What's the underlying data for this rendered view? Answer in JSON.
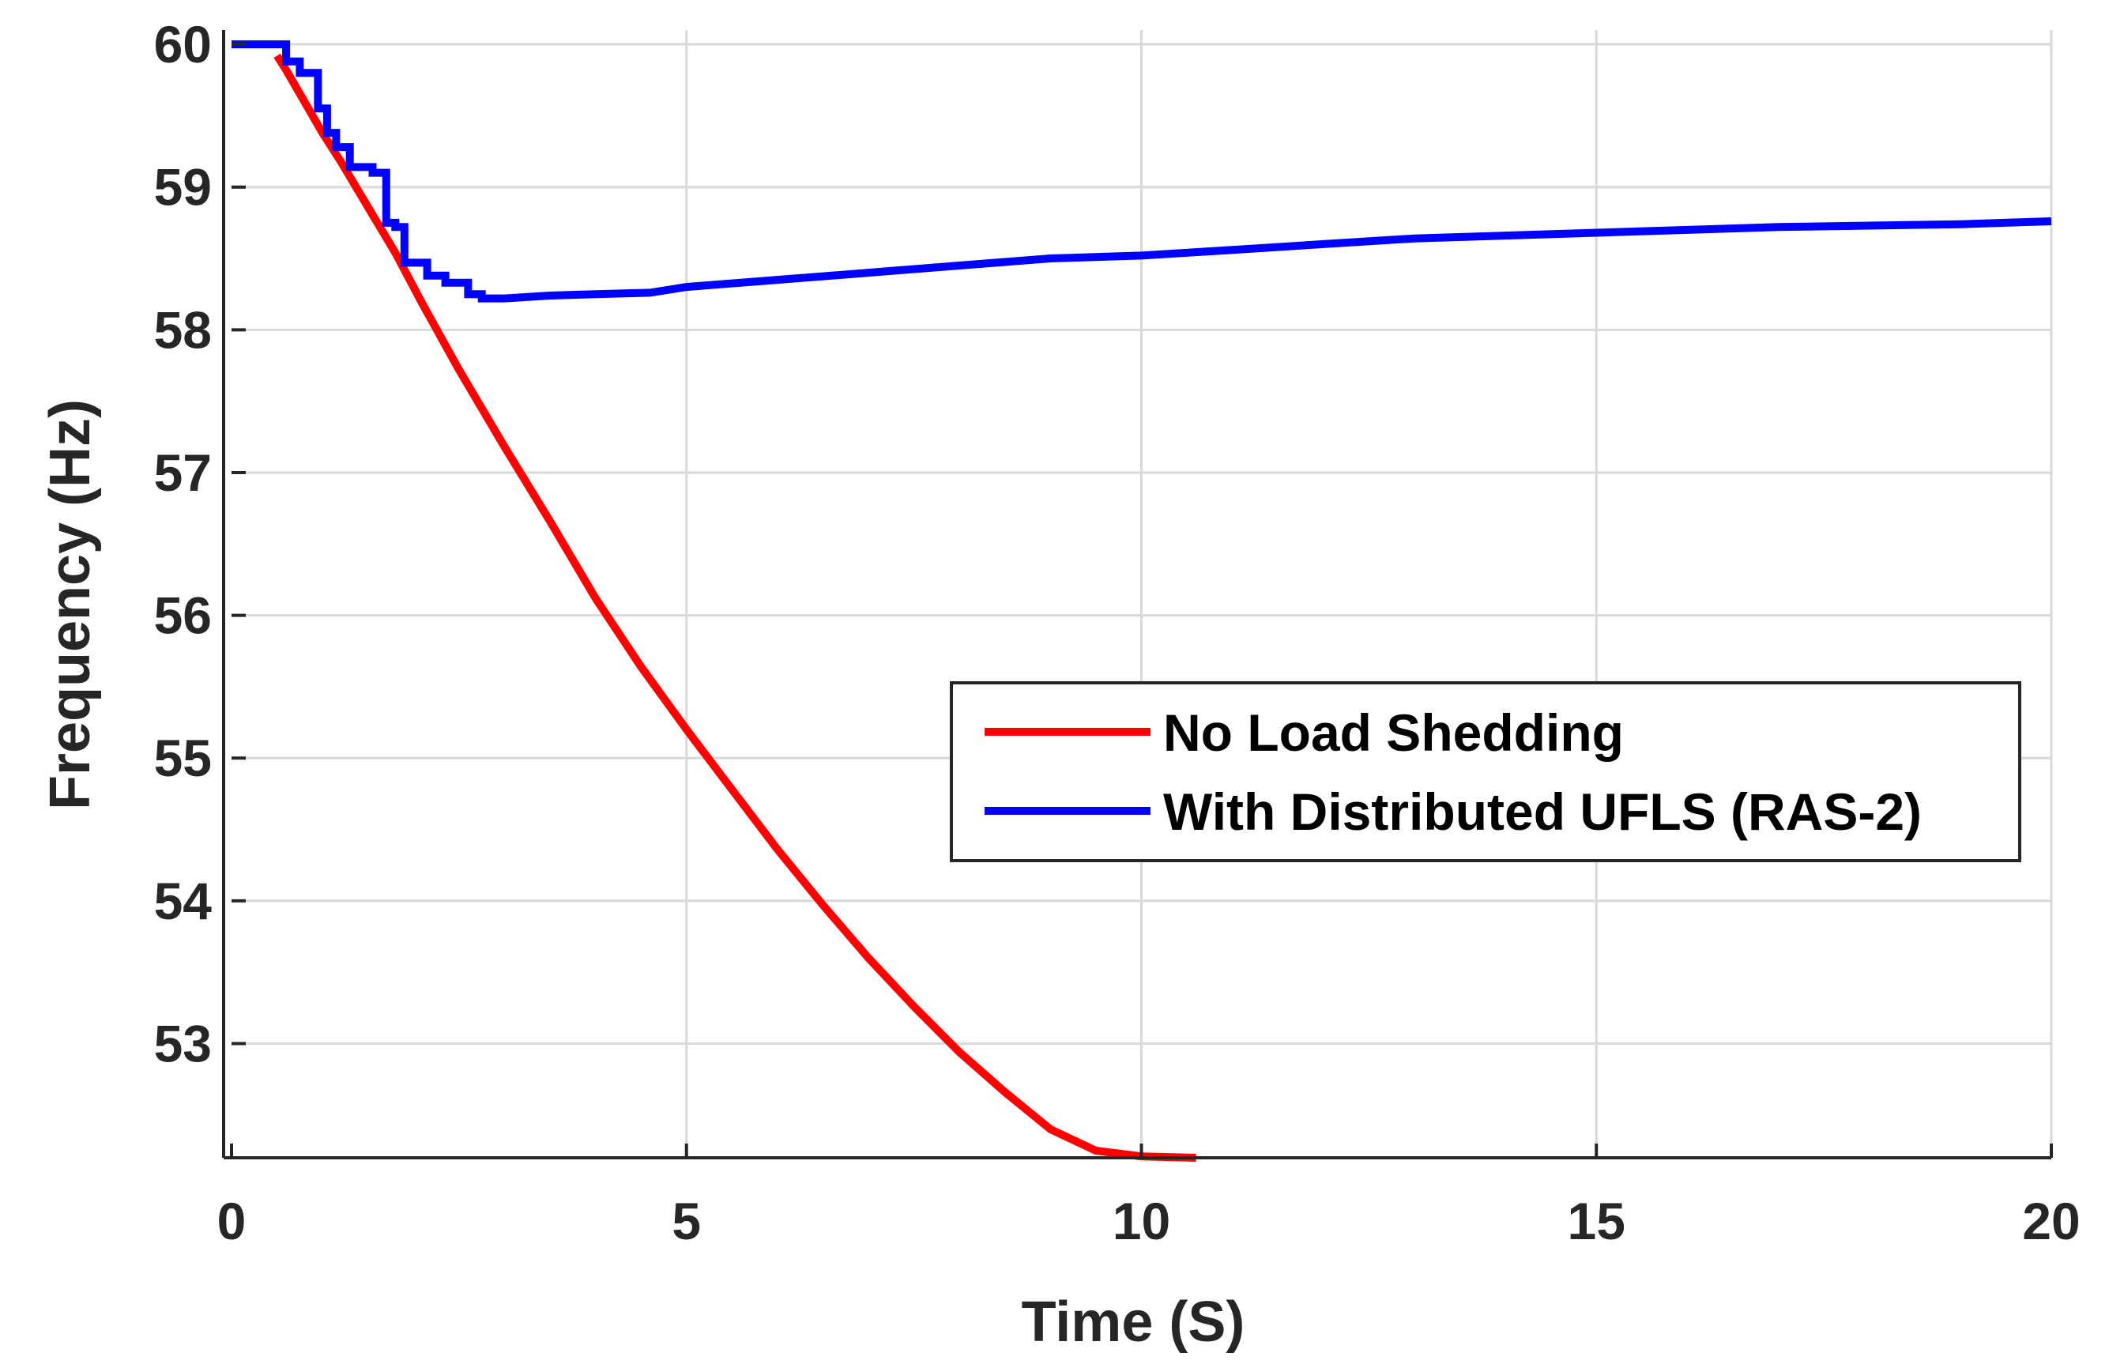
{
  "chart_data": {
    "type": "line",
    "title": "",
    "xlabel": "Time (S)",
    "ylabel": "Frequency (Hz)",
    "xlim": [
      0,
      20
    ],
    "ylim": [
      52.2,
      60.1
    ],
    "xticks": [
      0,
      5,
      10,
      15,
      20
    ],
    "yticks": [
      53,
      54,
      55,
      56,
      57,
      58,
      59,
      60
    ],
    "grid": true,
    "legend_position": "lower-right",
    "series": [
      {
        "name": "No Load Shedding",
        "color": "#ff0000",
        "x": [
          0.5,
          0.6,
          0.8,
          1.0,
          1.2,
          1.5,
          1.8,
          2.1,
          2.5,
          3.0,
          3.5,
          4.0,
          4.5,
          5.0,
          5.5,
          6.0,
          6.5,
          7.0,
          7.5,
          8.0,
          8.5,
          9.0,
          9.5,
          10.0,
          10.6
        ],
        "y": [
          59.92,
          59.82,
          59.6,
          59.38,
          59.18,
          58.86,
          58.54,
          58.18,
          57.72,
          57.18,
          56.66,
          56.12,
          55.64,
          55.2,
          54.78,
          54.36,
          53.97,
          53.6,
          53.26,
          52.94,
          52.66,
          52.4,
          52.25,
          52.21,
          52.2
        ]
      },
      {
        "name": "With Distributed UFLS (RAS-2)",
        "color": "#0000ff",
        "x": [
          0,
          0.6,
          0.6,
          0.75,
          0.75,
          0.95,
          0.95,
          1.05,
          1.05,
          1.15,
          1.15,
          1.3,
          1.3,
          1.55,
          1.55,
          1.7,
          1.7,
          1.8,
          1.8,
          1.9,
          1.9,
          2.15,
          2.15,
          2.35,
          2.35,
          2.6,
          2.6,
          2.75,
          2.75,
          3.0,
          3.5,
          4.0,
          4.6,
          5.0,
          6.0,
          7.0,
          8.0,
          9.0,
          10.0,
          11.0,
          12.0,
          13.0,
          14.0,
          15.0,
          16.0,
          17.0,
          18.0,
          19.0,
          20.0
        ],
        "y": [
          60.0,
          60.0,
          59.88,
          59.88,
          59.8,
          59.8,
          59.55,
          59.55,
          59.38,
          59.38,
          59.28,
          59.28,
          59.14,
          59.14,
          59.1,
          59.1,
          58.75,
          58.75,
          58.72,
          58.72,
          58.47,
          58.47,
          58.38,
          58.38,
          58.33,
          58.33,
          58.25,
          58.25,
          58.22,
          58.22,
          58.24,
          58.25,
          58.26,
          58.3,
          58.35,
          58.4,
          58.45,
          58.5,
          58.52,
          58.56,
          58.6,
          58.64,
          58.66,
          58.68,
          58.7,
          58.72,
          58.73,
          58.74,
          58.76
        ]
      }
    ]
  }
}
